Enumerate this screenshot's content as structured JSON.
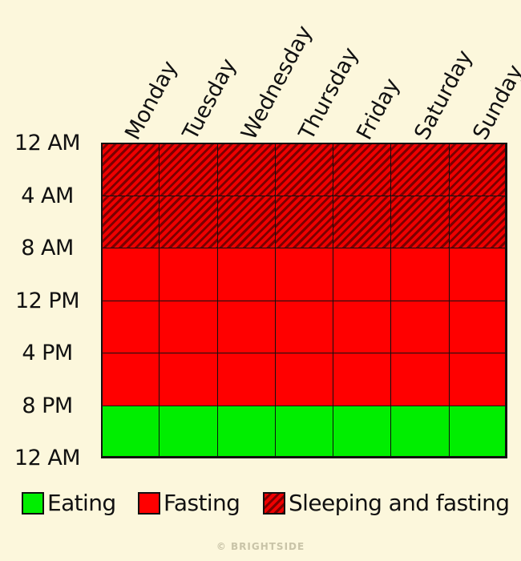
{
  "days": [
    "Monday",
    "Tuesday",
    "Wednesday",
    "Thursday",
    "Friday",
    "Saturday",
    "Sunday"
  ],
  "time_labels": [
    "12 AM",
    "4 AM",
    "8 AM",
    "12 PM",
    "4 PM",
    "8 PM",
    "12 AM"
  ],
  "schedule": {
    "rows": [
      "sleeping",
      "sleeping",
      "fasting",
      "fasting",
      "fasting",
      "eating"
    ]
  },
  "legend": {
    "eating": "Eating",
    "fasting": "Fasting",
    "sleeping": "Sleeping and fasting"
  },
  "colors": {
    "eating": "#00ee00",
    "fasting": "#ff0000",
    "sleeping_base": "#ee0000",
    "sleeping_stripe": "#7a0000",
    "background": "#fcf7dc"
  },
  "credit": "© BRIGHTSIDE"
}
